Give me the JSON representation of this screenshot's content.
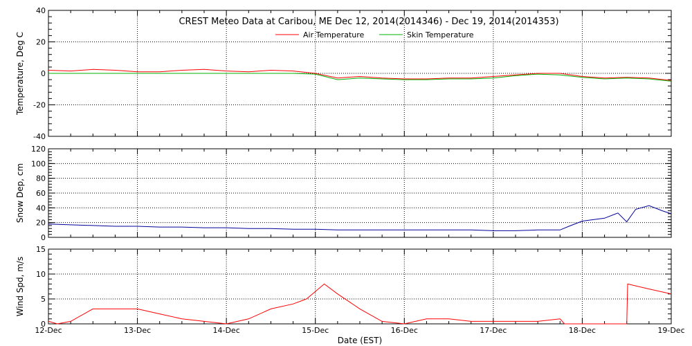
{
  "chart_data": [
    {
      "type": "line",
      "title": "CREST Meteo Data at Caribou, ME    Dec 12, 2014(2014346) - Dec 19, 2014(2014353)",
      "ylabel": "Temperature, Deg C",
      "ylim": [
        -40,
        40
      ],
      "yticks": [
        "-40",
        "-20",
        "0",
        "20",
        "40"
      ],
      "x": [
        12.0,
        12.25,
        12.5,
        12.75,
        13.0,
        13.25,
        13.5,
        13.75,
        14.0,
        14.25,
        14.5,
        14.75,
        15.0,
        15.25,
        15.5,
        15.75,
        16.0,
        16.25,
        16.5,
        16.75,
        17.0,
        17.25,
        17.5,
        17.75,
        18.0,
        18.25,
        18.5,
        18.75,
        19.0
      ],
      "legend_placement": "top-center",
      "colors": {
        "air": "#ff0000",
        "skin": "#00b000"
      },
      "series": [
        {
          "name": "Air Temperature",
          "color": "#ff0000",
          "values": [
            2,
            1.5,
            2.5,
            2,
            1,
            1,
            2,
            2.5,
            1.5,
            1,
            2,
            1.5,
            0,
            -3,
            -2,
            -3,
            -3.5,
            -3.5,
            -3,
            -3,
            -2,
            -1,
            0,
            0,
            -2,
            -3,
            -2.5,
            -3,
            -4.5
          ]
        },
        {
          "name": "Skin Temperature",
          "color": "#00b000",
          "values": [
            0,
            0,
            0,
            0,
            0,
            0,
            0,
            0,
            0,
            0,
            0,
            0,
            -0.5,
            -4,
            -3,
            -3.5,
            -4,
            -4,
            -3.5,
            -3.5,
            -3,
            -1.5,
            -0.5,
            -1,
            -2.5,
            -3.5,
            -3,
            -3.5,
            -5
          ]
        }
      ]
    },
    {
      "type": "line",
      "ylabel": "Snow Dep, cm",
      "ylim": [
        0,
        120
      ],
      "yticks": [
        "0",
        "20",
        "40",
        "60",
        "80",
        "100",
        "120"
      ],
      "x": [
        12.0,
        12.25,
        12.5,
        12.75,
        13.0,
        13.25,
        13.5,
        13.75,
        14.0,
        14.25,
        14.5,
        14.75,
        15.0,
        15.25,
        15.5,
        15.75,
        16.0,
        16.25,
        16.5,
        16.75,
        17.0,
        17.25,
        17.5,
        17.75,
        17.85,
        18.0,
        18.25,
        18.4,
        18.5,
        18.6,
        18.75,
        18.9,
        19.0
      ],
      "series": [
        {
          "name": "",
          "color": "#000099",
          "values": [
            18,
            17,
            16,
            15,
            15,
            14,
            14,
            13,
            13,
            12,
            12,
            11,
            11,
            10,
            10,
            10,
            10,
            10,
            10,
            10,
            9,
            9,
            10,
            10,
            15,
            22,
            26,
            33,
            21,
            38,
            43,
            36,
            32
          ]
        }
      ]
    },
    {
      "type": "line",
      "ylabel": "Wind Spd, m/s",
      "xlabel": "Date (EST)",
      "ylim": [
        0,
        15
      ],
      "yticks": [
        "0",
        "5",
        "10",
        "15"
      ],
      "xticks": [
        "12-Dec",
        "13-Dec",
        "14-Dec",
        "15-Dec",
        "16-Dec",
        "17-Dec",
        "18-Dec",
        "19-Dec"
      ],
      "x": [
        12.0,
        12.1,
        12.25,
        12.5,
        12.75,
        13.0,
        13.25,
        13.5,
        13.75,
        14.0,
        14.25,
        14.5,
        14.75,
        14.9,
        15.0,
        15.1,
        15.25,
        15.5,
        15.75,
        16.0,
        16.25,
        16.5,
        16.75,
        17.0,
        17.25,
        17.5,
        17.75,
        17.8,
        18.5,
        18.51,
        18.75,
        19.0
      ],
      "series": [
        {
          "name": "",
          "color": "#ff0000",
          "values": [
            0.5,
            0,
            0.5,
            3,
            3,
            3,
            2,
            1,
            0.5,
            0,
            1,
            3,
            4,
            5,
            6.5,
            8,
            6,
            3,
            0.5,
            0,
            1,
            1,
            0.5,
            0.5,
            0.5,
            0.5,
            1,
            0,
            0,
            8,
            7,
            6
          ]
        }
      ]
    }
  ]
}
